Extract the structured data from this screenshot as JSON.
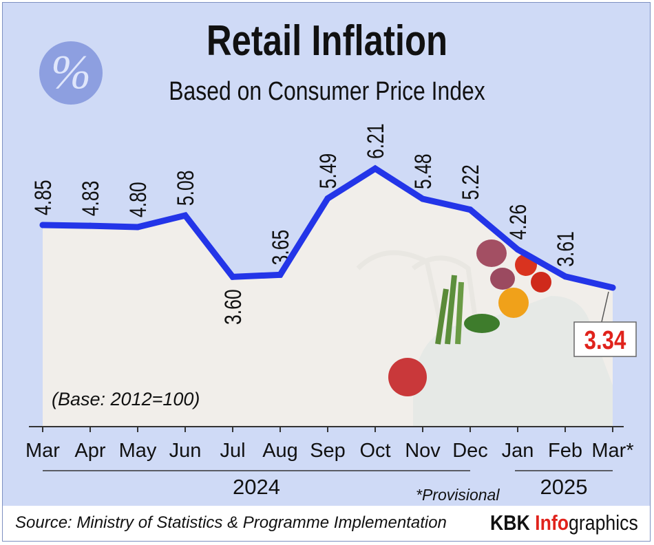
{
  "header": {
    "title": "Retail Inflation",
    "subtitle": "Based on Consumer Price Index",
    "badge_symbol": "%",
    "badge_icon": "percent-icon"
  },
  "notes": {
    "base": "(Base: 2012=100)",
    "provisional": "*Provisional",
    "source": "Source: Ministry of Statistics & Programme Implementation"
  },
  "brand": {
    "part1": "KBK ",
    "part2": "Info",
    "part3": "graphics"
  },
  "colors": {
    "line": "#2335e8",
    "background": "#cfdaf6",
    "highlight": "#e0231c",
    "area": "#f4efe9"
  },
  "chart_data": {
    "type": "line",
    "title": "Retail Inflation",
    "subtitle": "Based on Consumer Price Index",
    "categories": [
      "Mar",
      "Apr",
      "May",
      "Jun",
      "Jul",
      "Aug",
      "Sep",
      "Oct",
      "Nov",
      "Dec",
      "Jan",
      "Feb",
      "Mar*"
    ],
    "year_groups": [
      {
        "label": "2024",
        "from": "Mar",
        "to": "Dec"
      },
      {
        "label": "2025",
        "from": "Jan",
        "to": "Mar*"
      }
    ],
    "series": [
      {
        "values": [
          4.85,
          4.83,
          4.8,
          5.08,
          3.6,
          3.65,
          5.49,
          6.21,
          5.48,
          5.22,
          4.26,
          3.61,
          3.34
        ],
        "data_labels": [
          "4.85",
          "4.83",
          "4.80",
          "5.08",
          "3.60",
          "3.65",
          "5.49",
          "6.21",
          "5.48",
          "5.22",
          "4.26",
          "3.61",
          "3.34"
        ]
      }
    ],
    "highlighted_point": {
      "category": "Mar*",
      "value": 3.34
    },
    "xlabel": "",
    "ylabel": "",
    "grid": false,
    "legend": "none"
  }
}
